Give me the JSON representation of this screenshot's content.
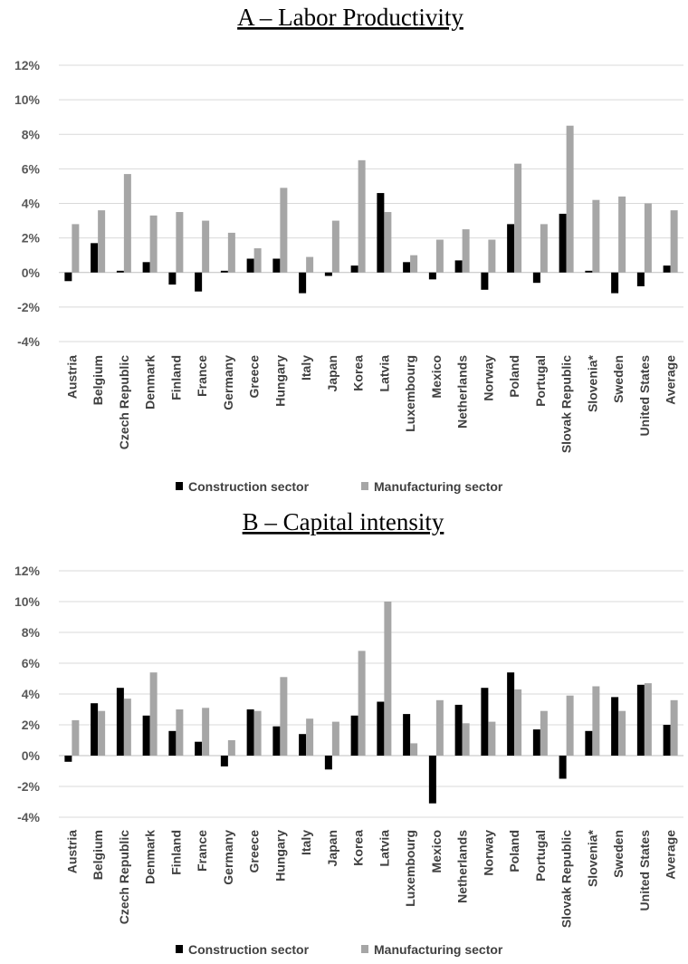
{
  "chart_data": [
    {
      "type": "bar",
      "title": "A – Labor Productivity",
      "ylim": [
        -4,
        12
      ],
      "yticks": [
        -4,
        -2,
        0,
        2,
        4,
        6,
        8,
        10,
        12
      ],
      "ytick_labels": [
        "-4%",
        "-2%",
        "0%",
        "2%",
        "4%",
        "6%",
        "8%",
        "10%",
        "12%"
      ],
      "grid": true,
      "legend": "bottom",
      "categories": [
        "Austria",
        "Belgium",
        "Czech Republic",
        "Denmark",
        "Finland",
        "France",
        "Germany",
        "Greece",
        "Hungary",
        "Italy",
        "Japan",
        "Korea",
        "Latvia",
        "Luxembourg",
        "Mexico",
        "Netherlands",
        "Norway",
        "Poland",
        "Portugal",
        "Slovak Republic",
        "Slovenia*",
        "Sweden",
        "United States",
        "Average"
      ],
      "series": [
        {
          "name": "Construction sector",
          "color": "#000000",
          "values": [
            -0.5,
            1.7,
            0.1,
            0.6,
            -0.7,
            -1.1,
            0.1,
            0.8,
            0.8,
            -1.2,
            -0.2,
            0.4,
            4.6,
            0.6,
            -0.4,
            0.7,
            -1.0,
            2.8,
            -0.6,
            3.4,
            0.1,
            -1.2,
            -0.8,
            0.4
          ]
        },
        {
          "name": "Manufacturing sector",
          "color": "#a6a6a6",
          "values": [
            2.8,
            3.6,
            5.7,
            3.3,
            3.5,
            3.0,
            2.3,
            1.4,
            4.9,
            0.9,
            3.0,
            6.5,
            3.5,
            1.0,
            1.9,
            2.5,
            1.9,
            6.3,
            2.8,
            8.5,
            4.2,
            4.4,
            4.0,
            3.6
          ]
        }
      ]
    },
    {
      "type": "bar",
      "title": "B – Capital intensity",
      "ylim": [
        -4,
        12
      ],
      "yticks": [
        -4,
        -2,
        0,
        2,
        4,
        6,
        8,
        10,
        12
      ],
      "ytick_labels": [
        "-4%",
        "-2%",
        "0%",
        "2%",
        "4%",
        "6%",
        "8%",
        "10%",
        "12%"
      ],
      "grid": true,
      "legend": "bottom",
      "categories": [
        "Austria",
        "Belgium",
        "Czech Republic",
        "Denmark",
        "Finland",
        "France",
        "Germany",
        "Greece",
        "Hungary",
        "Italy",
        "Japan",
        "Korea",
        "Latvia",
        "Luxembourg",
        "Mexico",
        "Netherlands",
        "Norway",
        "Poland",
        "Portugal",
        "Slovak Republic",
        "Slovenia*",
        "Sweden",
        "United States",
        "Average"
      ],
      "series": [
        {
          "name": "Construction sector",
          "color": "#000000",
          "values": [
            -0.4,
            3.4,
            4.4,
            2.6,
            1.6,
            0.9,
            -0.7,
            3.0,
            1.9,
            1.4,
            -0.9,
            2.6,
            3.5,
            2.7,
            -3.1,
            3.3,
            4.4,
            5.4,
            1.7,
            -1.5,
            1.6,
            3.8,
            4.6,
            2.0
          ]
        },
        {
          "name": "Manufacturing sector",
          "color": "#a6a6a6",
          "values": [
            2.3,
            2.9,
            3.7,
            5.4,
            3.0,
            3.1,
            1.0,
            2.9,
            5.1,
            2.4,
            2.2,
            6.8,
            10.0,
            0.8,
            3.6,
            2.1,
            2.2,
            4.3,
            2.9,
            3.9,
            4.5,
            2.9,
            4.7,
            3.6
          ]
        }
      ]
    }
  ]
}
